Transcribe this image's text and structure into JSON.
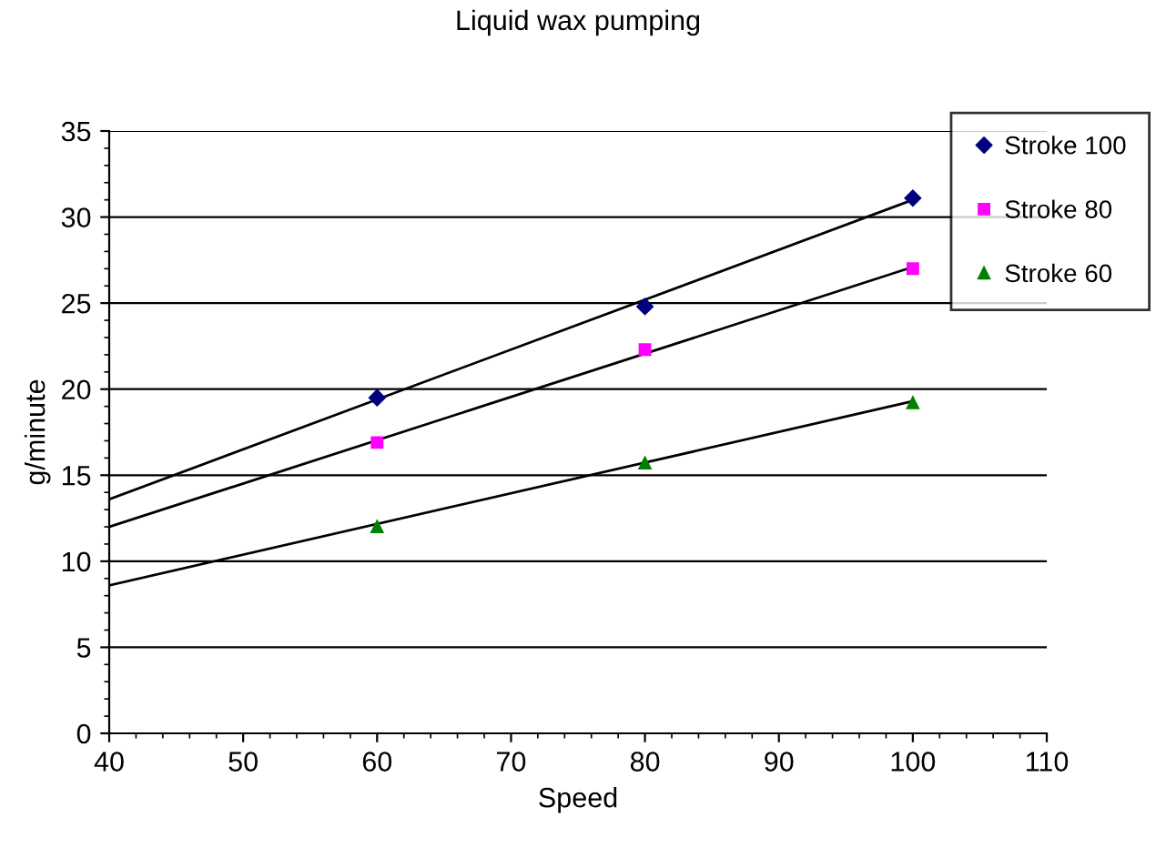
{
  "chart_data": {
    "type": "scatter",
    "title": "Liquid wax pumping",
    "xlabel": "Speed",
    "ylabel": "g/minute",
    "xlim": [
      40,
      110
    ],
    "xticks": [
      40,
      50,
      60,
      70,
      80,
      90,
      100,
      110
    ],
    "ylim": [
      0,
      35
    ],
    "yticks": [
      0,
      5,
      10,
      15,
      20,
      25,
      30,
      35
    ],
    "grid": "y",
    "legend": "top right",
    "series": [
      {
        "name": "Stroke 100",
        "color": "#000080",
        "marker": "diamond",
        "x": [
          60,
          80,
          100
        ],
        "values": [
          19.5,
          24.8,
          31.1
        ]
      },
      {
        "name": "Stroke 80",
        "color": "#ff00ff",
        "marker": "square",
        "x": [
          60,
          80,
          100
        ],
        "values": [
          16.9,
          22.3,
          27.0
        ]
      },
      {
        "name": "Stroke 60",
        "color": "#008000",
        "marker": "triangle",
        "x": [
          60,
          80,
          100
        ],
        "values": [
          12.0,
          15.7,
          19.2
        ]
      },
      {
        "type": "line",
        "color": "#000000",
        "marker": "none",
        "x": [
          40,
          100
        ],
        "values": [
          13.6,
          31.0
        ]
      },
      {
        "type": "line",
        "color": "#000000",
        "marker": "none",
        "x": [
          40,
          100
        ],
        "values": [
          12.0,
          27.1
        ]
      },
      {
        "type": "line",
        "color": "#000000",
        "marker": "none",
        "x": [
          40,
          100
        ],
        "values": [
          8.6,
          19.3
        ]
      }
    ]
  }
}
